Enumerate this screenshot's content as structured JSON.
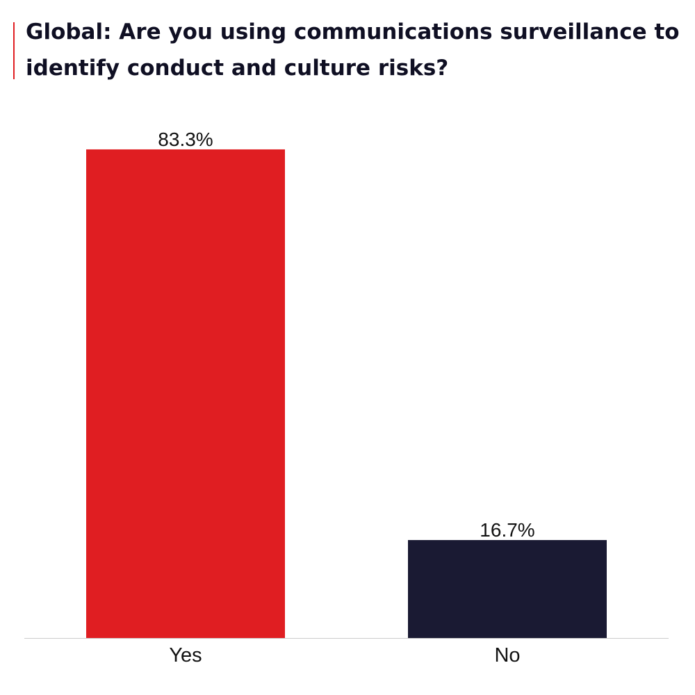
{
  "chart_data": {
    "type": "bar",
    "title": "Global: Are you using communications surveillance to identify conduct and culture risks?",
    "categories": [
      "Yes",
      "No"
    ],
    "values": [
      83.3,
      16.7
    ],
    "value_labels": [
      "83.3%",
      "16.7%"
    ],
    "ylim": [
      0,
      100
    ],
    "grid": false,
    "legend": "none",
    "colors": [
      "#e01e22",
      "#1a1a33"
    ],
    "accent_color": "#e01e22",
    "baseline_color": "#cccccc"
  }
}
